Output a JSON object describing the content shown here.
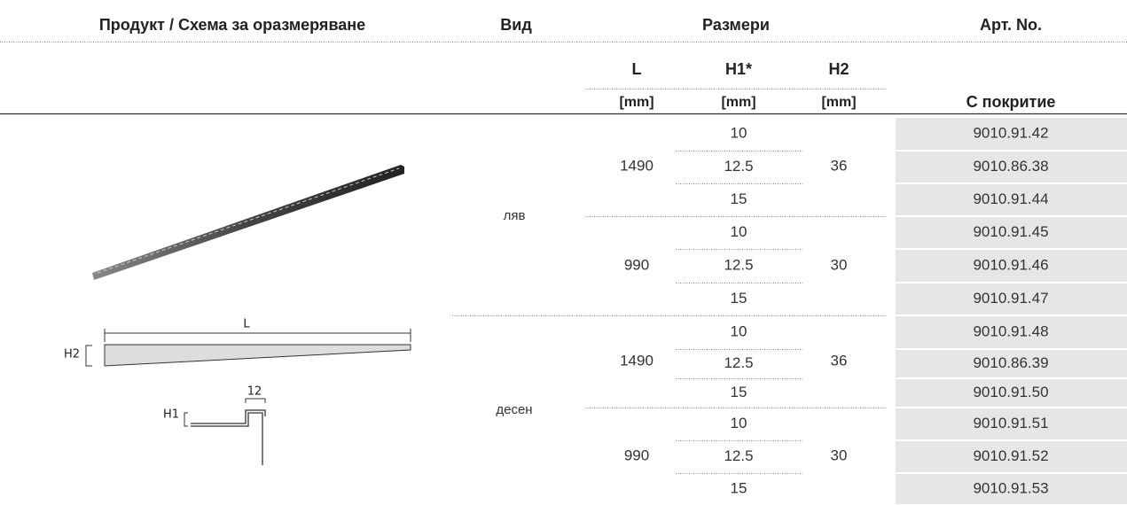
{
  "header": {
    "product": "Продукт / Схема за оразмеряване",
    "view": "Вид",
    "dimensions": "Размери",
    "art_no": "Арт. No."
  },
  "columns": [
    {
      "label": "L",
      "unit": "[mm]"
    },
    {
      "label": "H1*",
      "unit": "[mm]"
    },
    {
      "label": "H2",
      "unit": "[mm]"
    }
  ],
  "coating": "С покритие",
  "groups": [
    {
      "view": "ляв",
      "lengths": [
        {
          "L": 1490,
          "H2": 36,
          "rows": [
            {
              "H1": 10,
              "art": "9010.91.42"
            },
            {
              "H1": 12.5,
              "art": "9010.86.38"
            },
            {
              "H1": 15,
              "art": "9010.91.44"
            }
          ]
        },
        {
          "L": 990,
          "H2": 30,
          "rows": [
            {
              "H1": 10,
              "art": "9010.91.45"
            },
            {
              "H1": 12.5,
              "art": "9010.91.46"
            },
            {
              "H1": 15,
              "art": "9010.91.47"
            }
          ]
        }
      ]
    },
    {
      "view": "десен",
      "lengths": [
        {
          "L": 1490,
          "H2": 36,
          "rows": [
            {
              "H1": 10,
              "art": "9010.91.48"
            },
            {
              "H1": 12.5,
              "art": "9010.86.39"
            },
            {
              "H1": 15,
              "art": "9010.91.50"
            }
          ]
        },
        {
          "L": 990,
          "H2": 30,
          "rows": [
            {
              "H1": 10,
              "art": "9010.91.51"
            },
            {
              "H1": 12.5,
              "art": "9010.91.52"
            },
            {
              "H1": 15,
              "art": "9010.91.53"
            }
          ]
        }
      ]
    }
  ],
  "diagram": {
    "length": "L",
    "height2": "H2",
    "width": "12",
    "height1": "H1"
  }
}
